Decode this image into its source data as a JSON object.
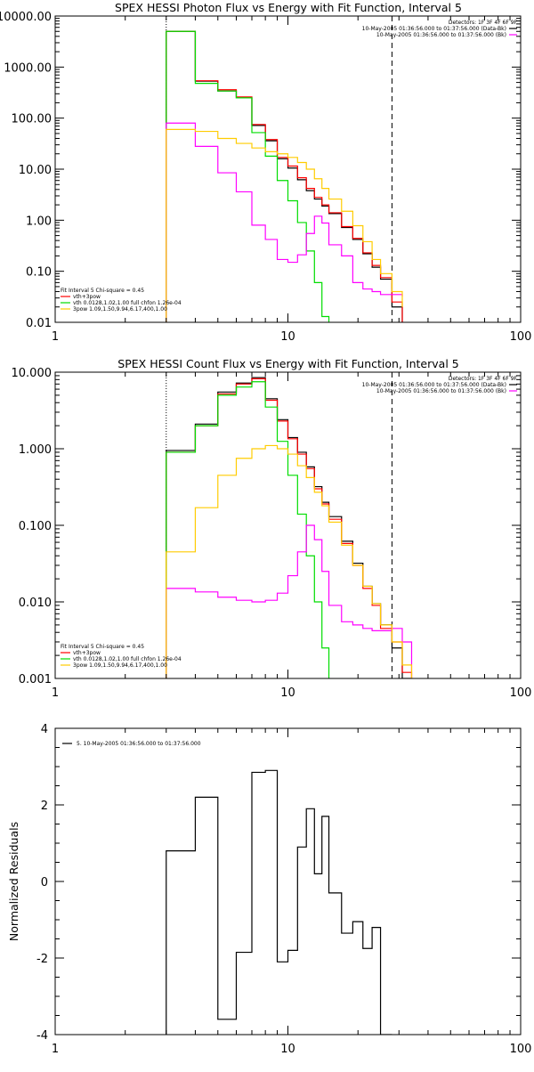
{
  "chart_data": [
    {
      "type": "line",
      "title": "SPEX HESSI Photon Flux vs Energy with Fit Function, Interval 5",
      "xscale": "log",
      "yscale": "log",
      "xlim": [
        1,
        100
      ],
      "ylim": [
        0.01,
        10000
      ],
      "x_tick_labels": [
        "1",
        "10",
        "100"
      ],
      "y_tick_labels": [
        "0.01",
        "0.10",
        "1.00",
        "10.00",
        "100.00",
        "1000.00",
        "10000.00"
      ],
      "legend_topright": [
        "Detectors: 1F 3F 4F 6F 9F",
        "10-May-2005 01:36:56.000 to 01:37:56.000 (Data-Bk)",
        "10-May-2005 01:36:56.000 to 01:37:56.000 (Bk)"
      ],
      "legend_bottomleft": [
        "Fit Interval 5   Chi-square = 0.45",
        "vth+3pow",
        "vth 0.0128,1.02,1.00  full chfon 1.26e-04",
        "3pow 1.09,1.50,9.94,6.17,400,1.00"
      ],
      "vlines": [
        {
          "x": 3.0,
          "style": "dotted"
        },
        {
          "x": 28,
          "style": "dashed"
        }
      ],
      "edges": [
        3,
        4,
        5,
        6,
        7,
        8,
        9,
        10,
        11,
        12,
        13,
        14,
        15,
        17,
        19,
        21,
        23,
        25,
        28,
        31
      ],
      "series": [
        {
          "color": "#000000",
          "values": [
            5000,
            530,
            340,
            250,
            72,
            36,
            16,
            10.5,
            6.2,
            3.8,
            2.6,
            1.9,
            1.35,
            0.72,
            0.42,
            0.22,
            0.12,
            0.07,
            0.02
          ]
        },
        {
          "color": "#ff0000",
          "values": [
            5000,
            540,
            360,
            260,
            75,
            38,
            17,
            11.5,
            6.8,
            4.2,
            2.8,
            2.0,
            1.4,
            0.75,
            0.44,
            0.23,
            0.13,
            0.075,
            0.025
          ]
        },
        {
          "color": "#00dd00",
          "values": [
            5000,
            480,
            340,
            250,
            52,
            18,
            6.0,
            2.4,
            0.9,
            0.25,
            0.06,
            0.013,
            0.005
          ]
        },
        {
          "color": "#ff00ff",
          "values": [
            80,
            28,
            8.5,
            3.6,
            0.8,
            0.42,
            0.17,
            0.15,
            0.21,
            0.55,
            1.2,
            0.88,
            0.33,
            0.2,
            0.06,
            0.045,
            0.04,
            0.035,
            0.035,
            0.032
          ]
        },
        {
          "color": "#ffcc00",
          "values": [
            60,
            55,
            40,
            32,
            26,
            22,
            20,
            17,
            13.5,
            10,
            6.5,
            4.2,
            2.6,
            1.5,
            0.78,
            0.38,
            0.17,
            0.09,
            0.04,
            0.02,
            0.012
          ]
        }
      ]
    },
    {
      "type": "line",
      "title": "SPEX HESSI Count Flux vs Energy with Fit Function, Interval 5",
      "xscale": "log",
      "yscale": "log",
      "xlim": [
        1,
        100
      ],
      "ylim": [
        0.001,
        10
      ],
      "x_tick_labels": [
        "1",
        "10",
        "100"
      ],
      "y_tick_labels": [
        "0.001",
        "0.010",
        "0.100",
        "1.000",
        "10.000"
      ],
      "legend_topright": [
        "Detectors: 1F 3F 4F 6F 9F",
        "10-May-2005 01:36:56.000 to 01:37:56.000 (Data-Bk)",
        "10-May-2005 01:36:56.000 to 01:37:56.000 (Bk)"
      ],
      "legend_bottomleft": [
        "Fit Interval 5   Chi-square = 0.45",
        "vth+3pow",
        "vth 0.0128,1.02,1.00  full chfon 1.26e-04",
        "3pow 1.09,1.50,9.94,6.17,400,1.00"
      ],
      "vlines": [
        {
          "x": 3.0,
          "style": "dotted"
        },
        {
          "x": 28,
          "style": "dashed"
        }
      ],
      "edges": [
        3,
        4,
        5,
        6,
        7,
        8,
        9,
        10,
        11,
        12,
        13,
        14,
        15,
        17,
        19,
        21,
        23,
        25,
        28,
        31,
        34
      ],
      "series": [
        {
          "color": "#000000",
          "values": [
            0.95,
            2.1,
            5.5,
            7.2,
            8.5,
            4.5,
            2.4,
            1.4,
            0.9,
            0.58,
            0.32,
            0.2,
            0.13,
            0.062,
            0.032,
            0.016,
            0.0095,
            0.005,
            0.0025,
            0.001
          ]
        },
        {
          "color": "#ff0000",
          "values": [
            0.9,
            2.0,
            5.2,
            7.0,
            8.2,
            4.3,
            2.3,
            1.35,
            0.85,
            0.55,
            0.3,
            0.19,
            0.12,
            0.058,
            0.03,
            0.015,
            0.009,
            0.0045,
            0.003,
            0.0012
          ]
        },
        {
          "color": "#00dd00",
          "values": [
            0.9,
            2.0,
            5.0,
            6.4,
            7.5,
            3.5,
            1.25,
            0.45,
            0.14,
            0.04,
            0.01,
            0.0025,
            0.0009
          ]
        },
        {
          "color": "#ff00ff",
          "values": [
            0.015,
            0.0135,
            0.0115,
            0.0105,
            0.01,
            0.0105,
            0.013,
            0.022,
            0.045,
            0.1,
            0.065,
            0.025,
            0.009,
            0.0055,
            0.005,
            0.0045,
            0.0042,
            0.0042,
            0.0045,
            0.003
          ]
        },
        {
          "color": "#ffcc00",
          "values": [
            0.045,
            0.17,
            0.45,
            0.75,
            1.0,
            1.1,
            1.0,
            0.85,
            0.6,
            0.42,
            0.27,
            0.18,
            0.11,
            0.055,
            0.03,
            0.016,
            0.0095,
            0.005,
            0.003,
            0.0015
          ]
        }
      ]
    },
    {
      "type": "line",
      "title": "",
      "xscale": "log",
      "xlim": [
        1,
        100
      ],
      "ylim": [
        -4,
        4
      ],
      "x_tick_labels": [
        "1",
        "10",
        "100"
      ],
      "y_tick_labels": [
        "-4",
        "-2",
        "0",
        "2",
        "4"
      ],
      "ylabel": "Normalized Residuals",
      "legend_topleft": [
        "5. 10-May-2005 01:36:56.000 to 01:37:56.000"
      ],
      "edges": [
        3,
        4,
        5,
        6,
        7,
        8,
        9,
        10,
        11,
        12,
        13,
        14,
        15,
        17,
        19,
        21,
        23,
        25,
        28
      ],
      "series": [
        {
          "name": "5. 10-May-2005 01:36:56.000 to 01:37:56.000",
          "color": "#000000",
          "values": [
            0.8,
            2.2,
            -3.6,
            -1.85,
            2.85,
            2.9,
            -2.1,
            -1.8,
            0.9,
            1.9,
            0.2,
            1.7,
            -0.3,
            -1.35,
            -1.05,
            -1.75,
            -1.2,
            -4.0
          ]
        }
      ]
    }
  ]
}
